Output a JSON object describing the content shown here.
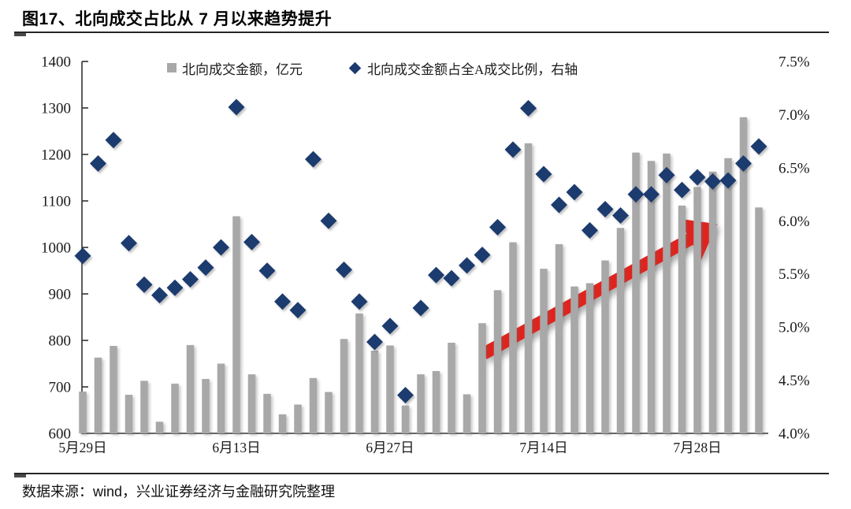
{
  "figure": {
    "title": "图17、北向成交占比从 7 月以来趋势提升",
    "source": "数据来源：wind，兴业证券经济与金融研究院整理"
  },
  "colors": {
    "bar": "#a8a8a8",
    "diamond": "#1c3a6e",
    "arrow": "#e2231a",
    "axis": "#333333",
    "text": "#1a1a1a"
  },
  "chart_data": {
    "type": "combo",
    "title": "图17、北向成交占比从 7 月以来趋势提升",
    "grid": false,
    "legend_position": "top-center",
    "categories_note": "45 consecutive trading days, only 5 axis tick labels shown",
    "x_tick_labels": [
      {
        "index": 0,
        "label": "5月29日"
      },
      {
        "index": 10,
        "label": "6月13日"
      },
      {
        "index": 20,
        "label": "6月27日"
      },
      {
        "index": 30,
        "label": "7月14日"
      },
      {
        "index": 40,
        "label": "7月28日"
      }
    ],
    "left_axis": {
      "min": 600,
      "max": 1400,
      "step": 100
    },
    "right_axis": {
      "min": 4.0,
      "max": 7.5,
      "step": 0.5,
      "suffix": "%"
    },
    "series": [
      {
        "name": "北向成交金额，亿元",
        "type": "bar",
        "axis": "left",
        "color": "#a8a8a8",
        "values": [
          690,
          763,
          788,
          683,
          713,
          625,
          707,
          790,
          717,
          750,
          1067,
          727,
          685,
          641,
          662,
          719,
          689,
          803,
          858,
          778,
          789,
          660,
          727,
          734,
          795,
          684,
          837,
          908,
          1011,
          1224,
          954,
          1007,
          916,
          923,
          972,
          1042,
          1204,
          1186,
          1202,
          1090,
          1130,
          1163,
          1192,
          1280,
          1086
        ]
      },
      {
        "name": "北向成交金额占全A成交比例，右轴",
        "type": "scatter-diamond",
        "axis": "right",
        "color": "#1c3a6e",
        "values": [
          5.67,
          6.54,
          6.76,
          5.79,
          5.4,
          5.3,
          5.37,
          5.45,
          5.56,
          5.75,
          7.07,
          5.8,
          5.53,
          5.24,
          5.16,
          6.58,
          6.0,
          5.54,
          5.24,
          4.86,
          5.01,
          4.36,
          5.18,
          5.49,
          5.46,
          5.58,
          5.68,
          5.94,
          6.67,
          7.06,
          6.44,
          6.15,
          6.27,
          5.91,
          6.11,
          6.05,
          6.25,
          6.25,
          6.43,
          6.29,
          6.41,
          6.37,
          6.38,
          6.54,
          6.7
        ]
      }
    ],
    "annotation": {
      "type": "trend-arrow",
      "color": "#e2231a",
      "axis": "right",
      "from": {
        "index": 26.1,
        "pct": 4.75
      },
      "to": {
        "index": 41.3,
        "pct": 5.97
      }
    }
  }
}
